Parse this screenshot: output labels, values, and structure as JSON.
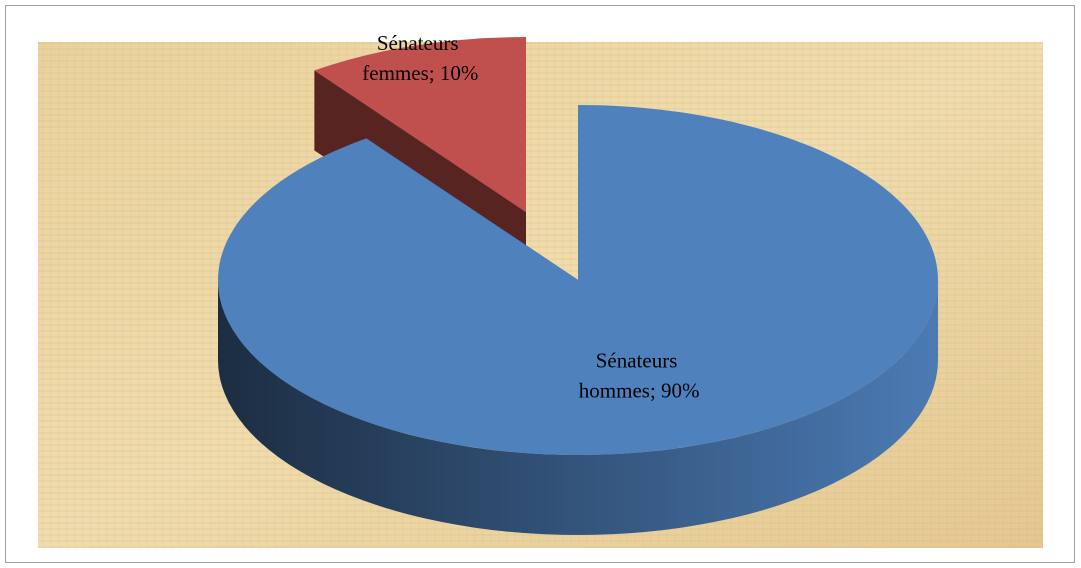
{
  "chart_data": {
    "type": "pie",
    "values": [
      90,
      10
    ],
    "value_labels": [
      "Sénateurs hommes; 90%",
      "Sénateurs femmes; 10%"
    ],
    "colors": [
      "#4f81bd",
      "#c0504d"
    ],
    "explode": [
      false,
      true
    ]
  }
}
